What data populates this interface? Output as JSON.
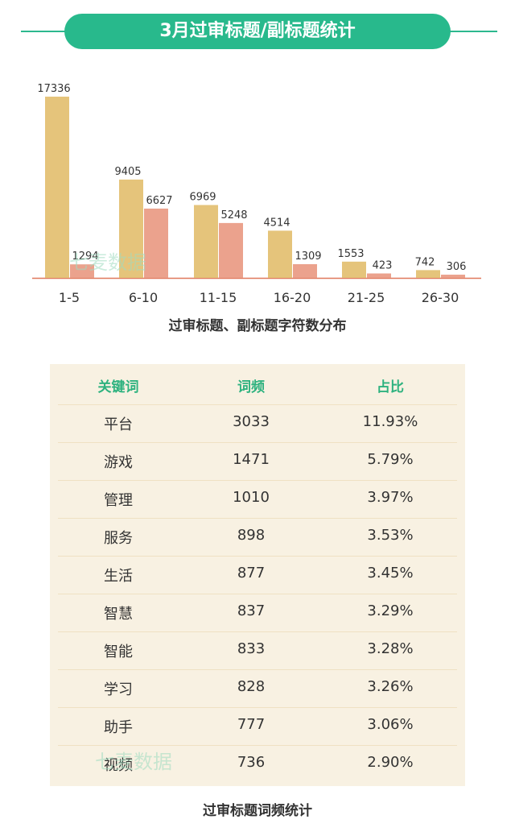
{
  "header": {
    "title": "3月过审标题/副标题统计"
  },
  "colors": {
    "accent": "#28b98c",
    "bar_title": "#e5c47b",
    "bar_subtitle": "#eba28d",
    "axis": "#e0785c"
  },
  "chart_data": {
    "type": "bar",
    "title": "过审标题、副标题字符数分布",
    "categories": [
      "1-5",
      "6-10",
      "11-15",
      "16-20",
      "21-25",
      "26-30"
    ],
    "series": [
      {
        "values": [
          17336,
          9405,
          6969,
          4514,
          1553,
          742
        ]
      },
      {
        "values": [
          1294,
          6627,
          5248,
          1309,
          423,
          306
        ]
      }
    ],
    "ylim": [
      0,
      17336
    ],
    "grid": false
  },
  "table": {
    "title": "过审标题词频统计",
    "headers": [
      "关键词",
      "词频",
      "占比"
    ],
    "rows": [
      [
        "平台",
        "3033",
        "11.93%"
      ],
      [
        "游戏",
        "1471",
        "5.79%"
      ],
      [
        "管理",
        "1010",
        "3.97%"
      ],
      [
        "服务",
        "898",
        "3.53%"
      ],
      [
        "生活",
        "877",
        "3.45%"
      ],
      [
        "智慧",
        "837",
        "3.29%"
      ],
      [
        "智能",
        "833",
        "3.28%"
      ],
      [
        "学习",
        "828",
        "3.26%"
      ],
      [
        "助手",
        "777",
        "3.06%"
      ],
      [
        "视频",
        "736",
        "2.90%"
      ]
    ]
  },
  "watermark": {
    "text": "七麦数据"
  }
}
